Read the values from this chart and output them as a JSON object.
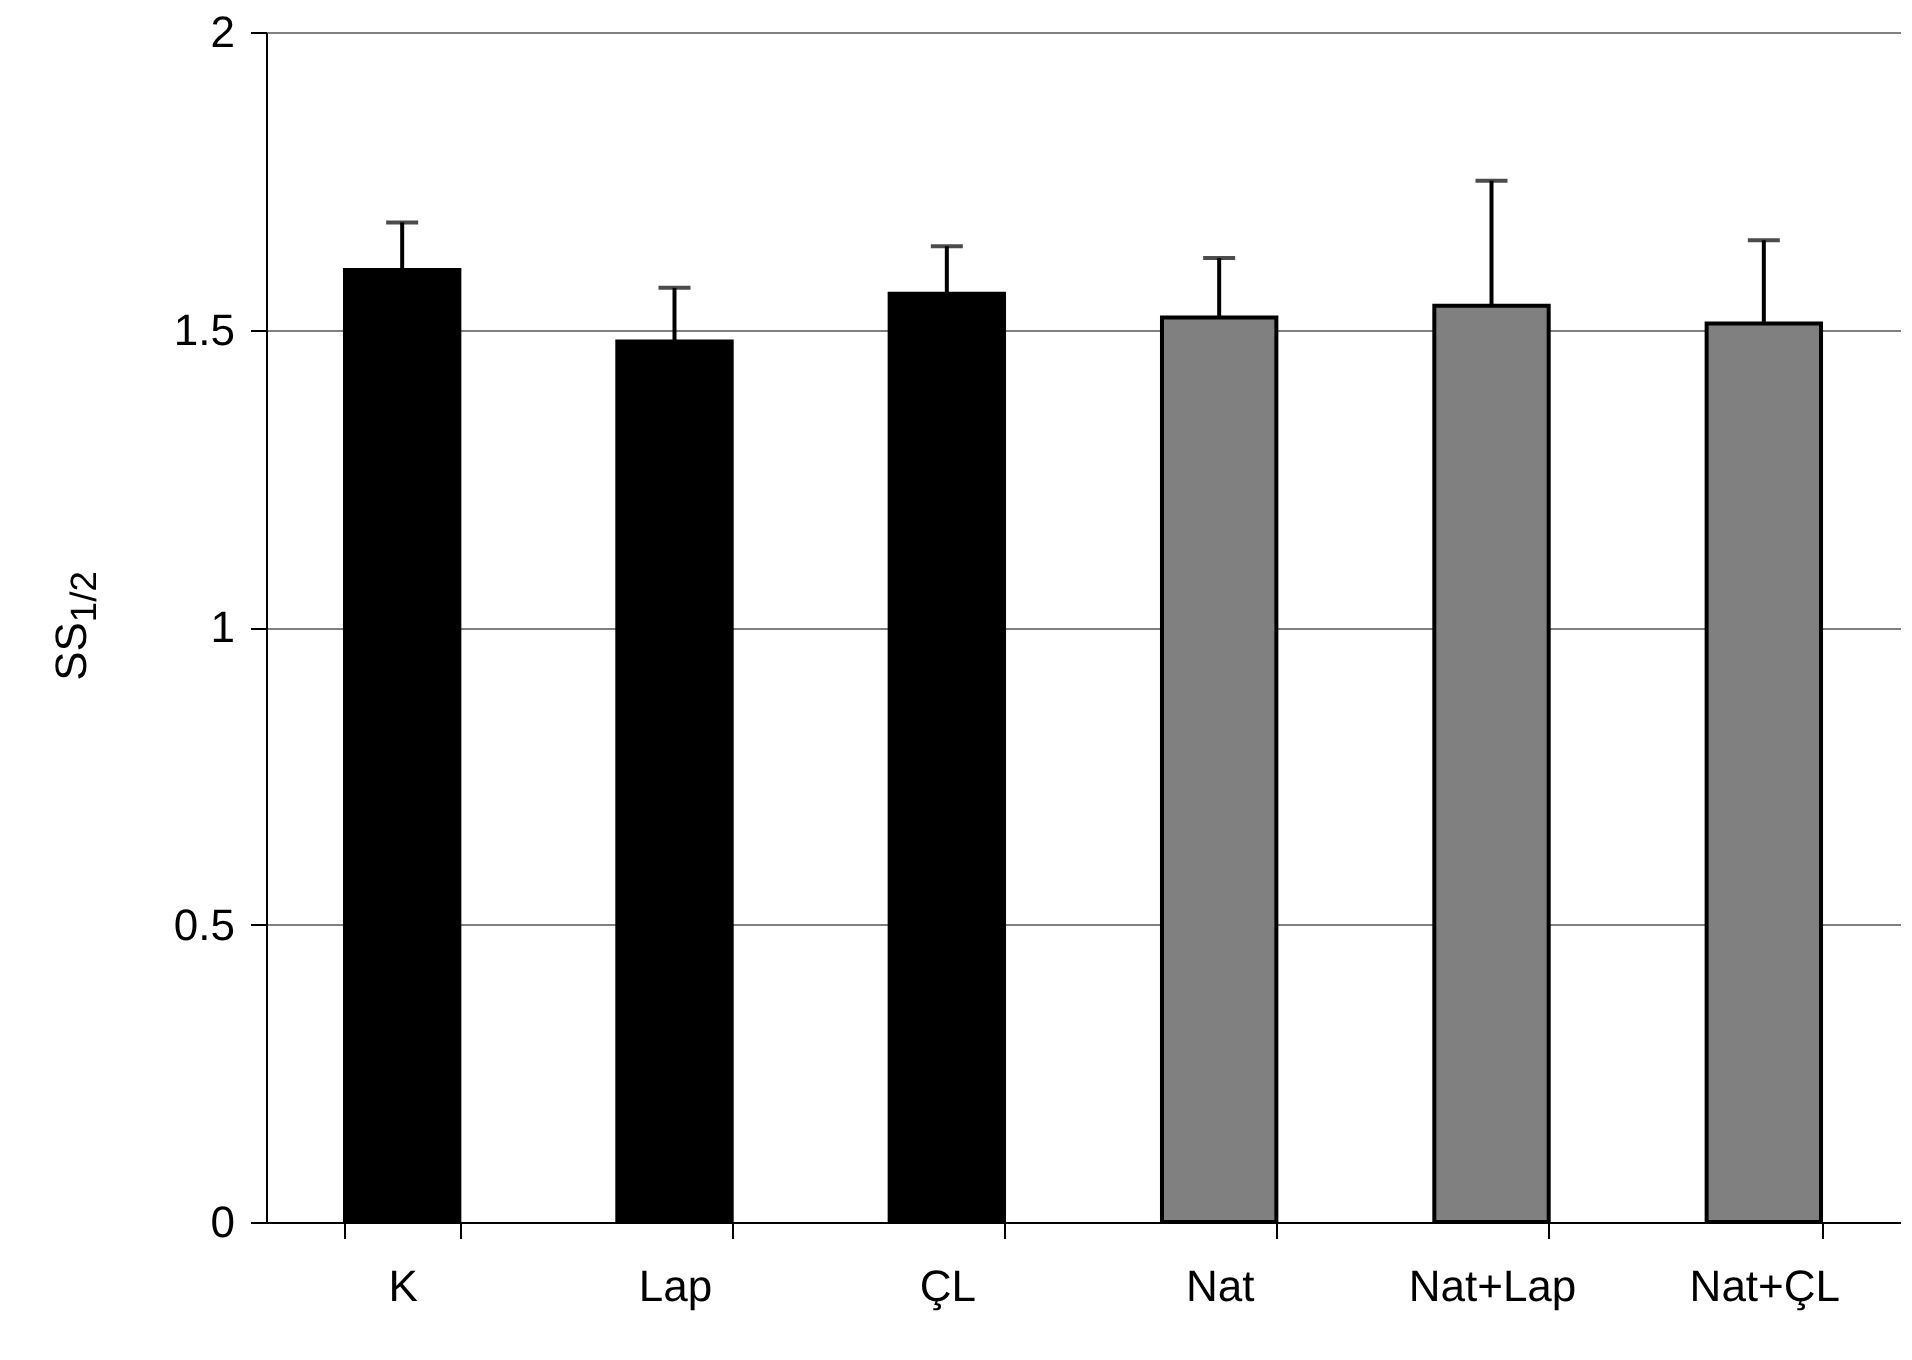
{
  "chart_data": {
    "type": "bar",
    "ylabel": "SS$_{1/2}$",
    "categories": [
      "K",
      "Lap",
      "ÇL",
      "Nat",
      "Nat+Lap",
      "Nat+ÇL"
    ],
    "values": [
      1.6,
      1.48,
      1.56,
      1.52,
      1.54,
      1.51
    ],
    "colors": [
      "#000000",
      "#000000",
      "#000000",
      "#808080",
      "#808080",
      "#808080"
    ],
    "errors": [
      [
        1.6,
        1.68
      ],
      [
        1.48,
        1.57
      ],
      [
        1.56,
        1.64
      ],
      [
        1.52,
        1.62
      ],
      [
        1.54,
        1.75
      ],
      [
        1.51,
        1.65
      ]
    ],
    "ylim": [
      0,
      2
    ],
    "yticks": [
      0,
      0.5,
      1,
      1.5,
      2
    ],
    "grid": "y"
  }
}
